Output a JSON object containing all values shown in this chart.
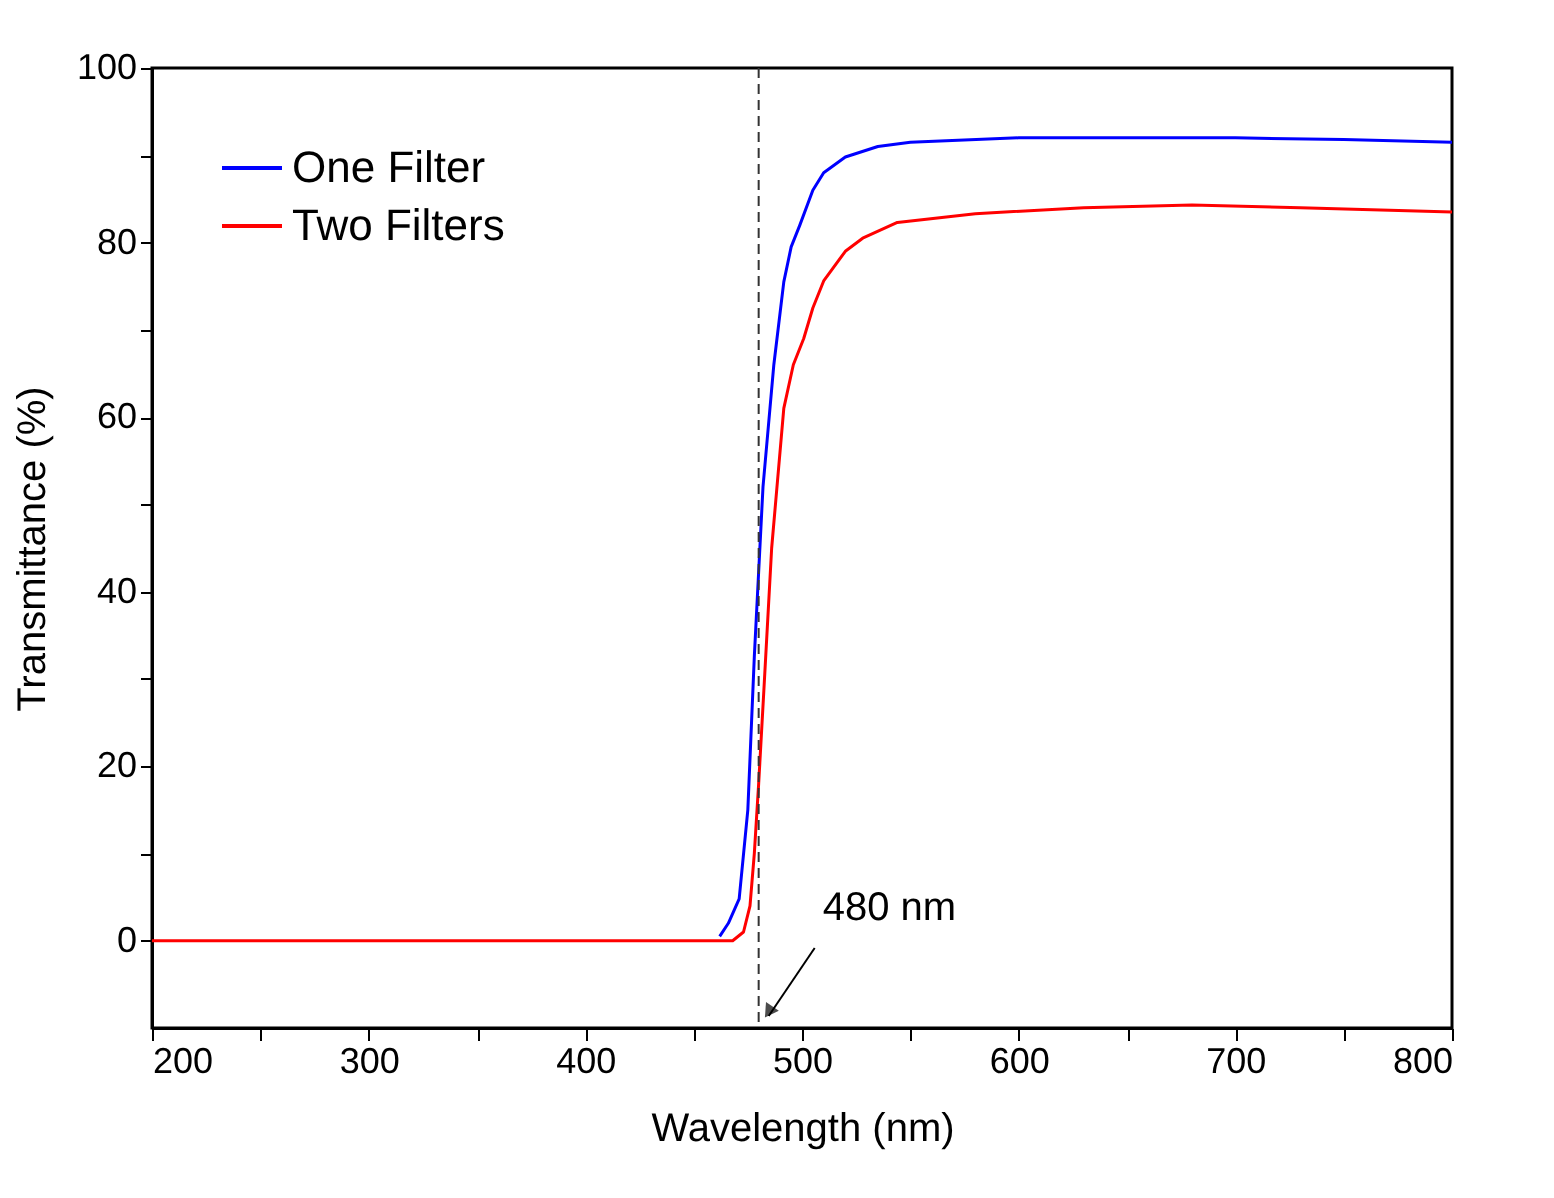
{
  "chart_data": {
    "type": "line",
    "xlabel": "Wavelength (nm)",
    "ylabel": "Transmittance (%)",
    "xlim": [
      200,
      800
    ],
    "ylim": [
      -10,
      100
    ],
    "xticks": [
      200,
      {
        "value": 250,
        "label": null
      },
      300,
      {
        "value": 350,
        "label": null
      },
      400,
      {
        "value": 450,
        "label": null
      },
      500,
      {
        "value": 550,
        "label": null
      },
      600,
      {
        "value": 650,
        "label": null
      },
      700,
      {
        "value": 750,
        "label": null
      },
      800
    ],
    "yticks": [
      0,
      {
        "value": 10,
        "label": null
      },
      20,
      {
        "value": 30,
        "label": null
      },
      40,
      {
        "value": 50,
        "label": null
      },
      60,
      {
        "value": 70,
        "label": null
      },
      80,
      {
        "value": 90,
        "label": null
      },
      100
    ],
    "series": [
      {
        "name": "One Filter",
        "color": "#0000ff",
        "x": [
          462,
          466,
          471,
          475,
          478,
          482,
          487,
          491.6,
          495,
          499,
          505,
          510,
          520,
          535,
          550,
          600,
          650,
          700,
          750,
          800
        ],
        "values": [
          0.5,
          2,
          4.8,
          15,
          32.6,
          52,
          66,
          75.5,
          79.5,
          82,
          86,
          88,
          89.8,
          91,
          91.5,
          92,
          92,
          92,
          91.8,
          91.5
        ]
      },
      {
        "name": "Two Filters",
        "color": "#ff0000",
        "x": [
          200,
          300,
          400,
          460,
          468,
          473,
          476,
          478,
          480,
          482.4,
          486,
          491.6,
          496,
          500.8,
          505,
          510,
          520,
          528,
          544,
          580,
          630,
          680,
          730,
          800
        ],
        "values": [
          0,
          0,
          0,
          0,
          0,
          1,
          4,
          10,
          18,
          28.7,
          45,
          61,
          66,
          69,
          72.5,
          75.6,
          79,
          80.5,
          82.3,
          83.3,
          84,
          84.3,
          84,
          83.5
        ]
      }
    ],
    "ref_lines": [
      {
        "axis": "x",
        "value": 480,
        "color": "#333333",
        "line_style": "dashed"
      }
    ],
    "annotations": [
      {
        "text": "480 nm",
        "x": 480,
        "y": -10
      }
    ],
    "legend": "top left",
    "grid": false,
    "line_style": "solid",
    "marker": "none"
  }
}
